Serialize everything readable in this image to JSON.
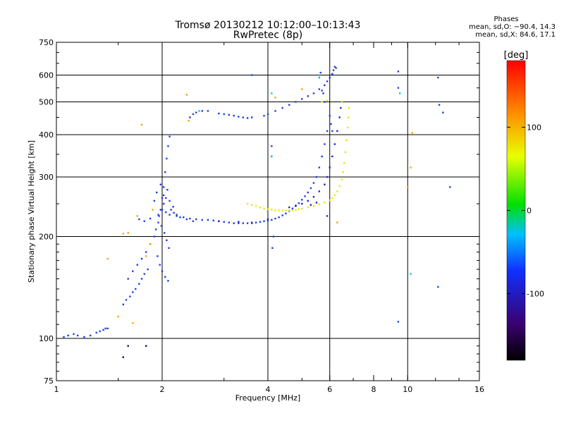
{
  "chart_data": {
    "type": "scatter",
    "title": "Tromsø 20130212 10:12:00–10:13:43",
    "subtitle": "RwPretec (8p)",
    "xlabel": "Frequency [MHz]",
    "ylabel": "Stationary phase Virtual Height [km]",
    "x_scale": "log",
    "y_scale": "log",
    "xlim": [
      1,
      16
    ],
    "ylim": [
      75,
      750
    ],
    "x_ticks": [
      1,
      2,
      4,
      6,
      8,
      10,
      16
    ],
    "x_tick_labels": [
      "1",
      "2",
      "4",
      "6",
      "8",
      "10",
      "16"
    ],
    "y_ticks": [
      75,
      100,
      200,
      300,
      400,
      500,
      600,
      750
    ],
    "y_tick_labels": [
      "75",
      "100",
      "200",
      "300",
      "400",
      "500",
      "600",
      "750"
    ],
    "grid_x": [
      2,
      4,
      6,
      10
    ],
    "grid_y": [
      100,
      200,
      300,
      400,
      500,
      600
    ],
    "legend": {
      "title": "Phases",
      "line1": "mean, sd,O: −90.4, 14.3",
      "line2": "mean, sd,X:  84.6, 17.1",
      "placement": "top-right"
    },
    "colorbar": {
      "label": "[deg]",
      "range": [
        -180,
        180
      ],
      "ticks": [
        100,
        0,
        -100
      ],
      "tick_labels": [
        "100",
        "0",
        "-100"
      ]
    },
    "series": [
      {
        "phase": -90,
        "color": "#1f3fe0",
        "points": [
          [
            1.05,
            101
          ],
          [
            1.08,
            102
          ],
          [
            1.12,
            103
          ],
          [
            1.15,
            102
          ],
          [
            1.2,
            101
          ],
          [
            1.25,
            102
          ],
          [
            1.3,
            104
          ],
          [
            1.33,
            105
          ],
          [
            1.36,
            106
          ],
          [
            1.38,
            107
          ],
          [
            1.4,
            107
          ],
          [
            1.55,
            126
          ],
          [
            1.58,
            130
          ],
          [
            1.62,
            133
          ],
          [
            1.65,
            137
          ],
          [
            1.68,
            140
          ],
          [
            1.72,
            145
          ],
          [
            1.75,
            150
          ],
          [
            1.78,
            155
          ],
          [
            1.82,
            160
          ],
          [
            1.6,
            150
          ],
          [
            1.65,
            158
          ],
          [
            1.7,
            165
          ],
          [
            1.75,
            172
          ],
          [
            1.8,
            180
          ],
          [
            1.85,
            190
          ],
          [
            1.9,
            200
          ],
          [
            1.92,
            210
          ],
          [
            1.95,
            220
          ],
          [
            1.98,
            240
          ],
          [
            2.0,
            260
          ],
          [
            2.02,
            280
          ],
          [
            2.04,
            310
          ],
          [
            2.06,
            340
          ],
          [
            2.08,
            370
          ],
          [
            2.1,
            395
          ],
          [
            1.72,
            225
          ],
          [
            1.78,
            222
          ],
          [
            1.85,
            226
          ],
          [
            1.95,
            232
          ],
          [
            2.05,
            236
          ],
          [
            2.1,
            232
          ],
          [
            2.2,
            230
          ],
          [
            2.3,
            228
          ],
          [
            2.4,
            226
          ],
          [
            2.5,
            225
          ],
          [
            2.6,
            224
          ],
          [
            2.7,
            224
          ],
          [
            2.8,
            223
          ],
          [
            2.9,
            222
          ],
          [
            3.0,
            221
          ],
          [
            3.1,
            220
          ],
          [
            3.2,
            219
          ],
          [
            3.3,
            219
          ],
          [
            3.4,
            219
          ],
          [
            3.5,
            219
          ],
          [
            3.6,
            219
          ],
          [
            3.7,
            220
          ],
          [
            3.8,
            221
          ],
          [
            3.9,
            222
          ],
          [
            4.0,
            223
          ],
          [
            4.1,
            224
          ],
          [
            4.2,
            226
          ],
          [
            4.3,
            228
          ],
          [
            4.4,
            231
          ],
          [
            4.5,
            234
          ],
          [
            4.6,
            238
          ],
          [
            4.7,
            242
          ],
          [
            4.8,
            246
          ],
          [
            4.9,
            251
          ],
          [
            5.0,
            257
          ],
          [
            5.1,
            263
          ],
          [
            5.2,
            270
          ],
          [
            5.3,
            278
          ],
          [
            5.4,
            288
          ],
          [
            5.5,
            300
          ],
          [
            5.6,
            320
          ],
          [
            5.7,
            345
          ],
          [
            5.8,
            375
          ],
          [
            5.9,
            410
          ],
          [
            6.0,
            455
          ],
          [
            2.0,
            240
          ],
          [
            2.02,
            250
          ],
          [
            2.05,
            260
          ],
          [
            2.1,
            255
          ],
          [
            2.15,
            245
          ],
          [
            1.96,
            230
          ],
          [
            1.99,
            215
          ],
          [
            2.03,
            205
          ],
          [
            2.06,
            195
          ],
          [
            2.09,
            185
          ],
          [
            1.94,
            175
          ],
          [
            1.97,
            165
          ],
          [
            2.0,
            158
          ],
          [
            2.04,
            152
          ],
          [
            2.08,
            148
          ],
          [
            2.12,
            240
          ],
          [
            2.16,
            235
          ],
          [
            2.2,
            232
          ],
          [
            2.25,
            228
          ],
          [
            2.35,
            225
          ],
          [
            2.45,
            222
          ],
          [
            1.9,
            255
          ],
          [
            1.93,
            270
          ],
          [
            1.98,
            285
          ],
          [
            2.02,
            265
          ],
          [
            2.07,
            275
          ],
          [
            2.4,
            450
          ],
          [
            2.45,
            460
          ],
          [
            2.5,
            465
          ],
          [
            2.6,
            470
          ],
          [
            2.7,
            470
          ],
          [
            2.9,
            462
          ],
          [
            3.0,
            460
          ],
          [
            3.1,
            458
          ],
          [
            3.2,
            455
          ],
          [
            3.3,
            452
          ],
          [
            3.4,
            450
          ],
          [
            3.5,
            448
          ],
          [
            3.6,
            450
          ],
          [
            3.9,
            455
          ],
          [
            4.0,
            460
          ],
          [
            4.2,
            470
          ],
          [
            4.4,
            480
          ],
          [
            4.6,
            490
          ],
          [
            4.8,
            500
          ],
          [
            5.0,
            510
          ],
          [
            5.2,
            520
          ],
          [
            5.4,
            530
          ],
          [
            5.6,
            545
          ],
          [
            5.8,
            560
          ],
          [
            5.9,
            575
          ],
          [
            6.0,
            590
          ],
          [
            6.1,
            605
          ],
          [
            6.15,
            620
          ],
          [
            6.2,
            635
          ],
          [
            6.25,
            630
          ],
          [
            5.6,
            590
          ],
          [
            5.65,
            610
          ],
          [
            5.7,
            540
          ],
          [
            5.75,
            530
          ],
          [
            5.8,
            500
          ],
          [
            6.05,
            430
          ],
          [
            6.1,
            410
          ],
          [
            4.1,
            370
          ],
          [
            4.1,
            345
          ],
          [
            4.15,
            200
          ],
          [
            4.12,
            185
          ],
          [
            3.6,
            600
          ],
          [
            9.4,
            615
          ],
          [
            9.4,
            550
          ],
          [
            9.4,
            112
          ],
          [
            12.2,
            590
          ],
          [
            12.3,
            490
          ],
          [
            12.6,
            465
          ],
          [
            12.2,
            142
          ],
          [
            13.2,
            280
          ]
        ]
      },
      {
        "phase": -110,
        "color": "#2a1fd0",
        "points": [
          [
            4.6,
            244
          ],
          [
            4.8,
            247
          ],
          [
            5.0,
            250
          ],
          [
            5.2,
            255
          ],
          [
            5.4,
            262
          ],
          [
            5.6,
            272
          ],
          [
            5.8,
            285
          ],
          [
            5.9,
            300
          ],
          [
            6.0,
            320
          ],
          [
            6.1,
            345
          ],
          [
            6.2,
            375
          ],
          [
            6.3,
            410
          ],
          [
            6.4,
            450
          ],
          [
            6.45,
            480
          ],
          [
            6.5,
            500
          ],
          [
            5.9,
            230
          ],
          [
            5.3,
            248
          ],
          [
            5.5,
            252
          ],
          [
            2.9,
            222
          ],
          [
            3.3,
            221
          ],
          [
            3.6,
            220
          ],
          [
            4.0,
            225
          ]
        ]
      },
      {
        "phase": 100,
        "color": "#e8e800",
        "points": [
          [
            3.5,
            250
          ],
          [
            3.6,
            248
          ],
          [
            3.7,
            246
          ],
          [
            3.8,
            244
          ],
          [
            3.9,
            242
          ],
          [
            4.0,
            241
          ],
          [
            4.1,
            240
          ],
          [
            4.2,
            239
          ],
          [
            4.3,
            239
          ],
          [
            4.4,
            239
          ],
          [
            4.5,
            239
          ],
          [
            4.6,
            239
          ],
          [
            4.7,
            239
          ],
          [
            4.8,
            240
          ],
          [
            4.9,
            241
          ],
          [
            5.0,
            242
          ],
          [
            5.2,
            244
          ],
          [
            5.4,
            246
          ],
          [
            5.6,
            249
          ],
          [
            5.8,
            252
          ],
          [
            6.0,
            256
          ],
          [
            6.1,
            260
          ],
          [
            6.2,
            265
          ],
          [
            6.3,
            272
          ],
          [
            6.4,
            282
          ],
          [
            6.5,
            295
          ],
          [
            6.55,
            310
          ],
          [
            6.6,
            330
          ],
          [
            6.65,
            355
          ],
          [
            6.7,
            385
          ],
          [
            6.75,
            420
          ],
          [
            6.78,
            450
          ],
          [
            6.8,
            480
          ],
          [
            5.7,
            500
          ],
          [
            5.9,
            505
          ],
          [
            6.5,
            500
          ]
        ]
      },
      {
        "phase": 130,
        "color": "#ffa000",
        "points": [
          [
            1.4,
            172
          ],
          [
            1.5,
            116
          ],
          [
            1.55,
            204
          ],
          [
            1.6,
            205
          ],
          [
            1.65,
            111
          ],
          [
            1.7,
            230
          ],
          [
            1.75,
            428
          ],
          [
            1.8,
            175
          ],
          [
            1.85,
            190
          ],
          [
            1.88,
            240
          ],
          [
            2.35,
            525
          ],
          [
            2.38,
            440
          ],
          [
            4.2,
            515
          ],
          [
            5.0,
            545
          ],
          [
            6.3,
            220
          ],
          [
            10.0,
            280
          ],
          [
            10.2,
            320
          ],
          [
            10.3,
            405
          ]
        ]
      },
      {
        "phase": 0,
        "color": "#18c0d0",
        "points": [
          [
            2.55,
            470
          ],
          [
            4.1,
            530
          ],
          [
            4.1,
            345
          ],
          [
            5.6,
            590
          ],
          [
            9.5,
            530
          ],
          [
            10.2,
            155
          ]
        ]
      },
      {
        "phase": -160,
        "color": "#300060",
        "points": [
          [
            1.8,
            95
          ],
          [
            1.55,
            88
          ],
          [
            1.6,
            95
          ]
        ]
      }
    ]
  }
}
